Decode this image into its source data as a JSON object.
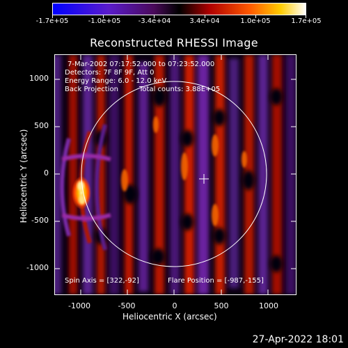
{
  "colorbar": {
    "tick_labels": [
      "-1.7e+05",
      "-1.0e+05",
      "-3.4e+04",
      "3.4e+04",
      "1.0e+05",
      "1.7e+05"
    ],
    "min": -170000,
    "max": 170000
  },
  "title": "Reconstructed RHESSI Image",
  "annotations": {
    "time": "7-Mar-2002 07:17:52.000 to 07:23:52.000",
    "detectors": "Detectors: 7F 8F 9F, Att 0",
    "energy": "Energy Range: 6.0 - 12.0 keV",
    "method": "Back Projection",
    "counts": "Total counts: 3.88E+05",
    "spin_axis": "Spin Axis = [322,-92]",
    "flare_position": "Flare Position = [-987,-155]"
  },
  "axes": {
    "xlabel": "Heliocentric X (arcsec)",
    "ylabel": "Heliocentric Y (arcsec)",
    "x_ticks": [
      "-1000",
      "-500",
      "0",
      "500",
      "1000"
    ],
    "y_ticks": [
      "1000",
      "500",
      "0",
      "-500",
      "-1000"
    ]
  },
  "footer": {
    "timestamp": "27-Apr-2022 18:01"
  },
  "colors": {
    "neg": "#2a0050",
    "mid_neg": "#6a1a8a",
    "pos": "#cc1100",
    "hot": "#ff8800",
    "white": "#ffffff"
  }
}
